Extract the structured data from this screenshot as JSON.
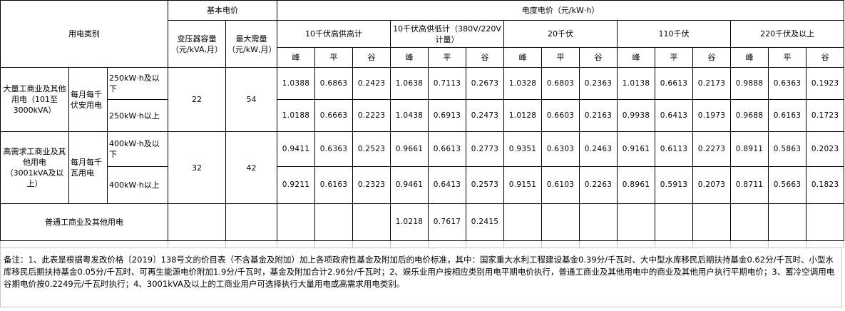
{
  "header": {
    "category": "用电类别",
    "basic_price": "基本电价",
    "transformer_capacity": "变压器容量（元/kVA,月）",
    "max_demand": "最大需量（元/kW,月）",
    "energy_price": "电度电价（元/kW·h）",
    "voltage_levels": [
      "10千伏高供高计",
      "10千伏高供低计（380V/220V计量）",
      "20千伏",
      "110千伏",
      "220千伏及以上"
    ],
    "periods": [
      "峰",
      "平",
      "谷"
    ]
  },
  "groups": [
    {
      "name": "大量工商业及其他用电（101至3000kVA）",
      "unit": "每月每千伏安用电",
      "transformer_capacity": "22",
      "max_demand": "54",
      "rows": [
        {
          "tier": "250kW·h及以下",
          "prices": [
            "1.0388",
            "0.6863",
            "0.2423",
            "1.0638",
            "0.7113",
            "0.2673",
            "1.0328",
            "0.6803",
            "0.2363",
            "1.0138",
            "0.6613",
            "0.2173",
            "0.9888",
            "0.6363",
            "0.1923"
          ]
        },
        {
          "tier": "250kW·h以上",
          "prices": [
            "1.0188",
            "0.6663",
            "0.2223",
            "1.0438",
            "0.6913",
            "0.2473",
            "1.0128",
            "0.6603",
            "0.2163",
            "0.9938",
            "0.6413",
            "0.1973",
            "0.9688",
            "0.6163",
            "0.1723"
          ]
        }
      ]
    },
    {
      "name": "高需求工商业及其他用电（3001kVA及以上）",
      "unit": "每月每千瓦用电",
      "transformer_capacity": "32",
      "max_demand": "42",
      "rows": [
        {
          "tier": "400kW·h及以下",
          "prices": [
            "0.9411",
            "0.6363",
            "0.2523",
            "0.9661",
            "0.6613",
            "0.2773",
            "0.9351",
            "0.6303",
            "0.2463",
            "0.9161",
            "0.6113",
            "0.2273",
            "0.8911",
            "0.5863",
            "0.2023"
          ]
        },
        {
          "tier": "400kW·h以上",
          "prices": [
            "0.9211",
            "0.6163",
            "0.2323",
            "0.9461",
            "0.6413",
            "0.2573",
            "0.9151",
            "0.6103",
            "0.2263",
            "0.8961",
            "0.5913",
            "0.2073",
            "0.8711",
            "0.5663",
            "0.1823"
          ]
        }
      ]
    }
  ],
  "general": {
    "name": "普通工商业及其他用电",
    "prices": [
      "",
      "",
      "",
      "1.0218",
      "0.7617",
      "0.2415",
      "",
      "",
      "",
      "",
      "",
      "",
      "",
      "",
      ""
    ]
  },
  "note": "备注：1、此表是根据粤发改价格〔2019〕138号文的价目表（不含基金及附加）加上各项政府性基金及附加后的电价标准，其中：国家重大水利工程建设基金0.39分/千瓦时、大中型水库移民后期扶持基金0.62分/千瓦时、小型水库移民后期扶持基金0.05分/千瓦时、可再生能源电价附加1.9分/千瓦时，基金及附加合计2.96分/千瓦时；2、娱乐业用户按相应类别用电平期电价执行，普通工商业及其他用电中的商业及其他用户执行平期电价；3、蓄冷空调用电谷期电价按0.2249元/千瓦时执行；4、3001kVA及以上的工商业用户可选择执行大量用电或高需求用电类别。"
}
